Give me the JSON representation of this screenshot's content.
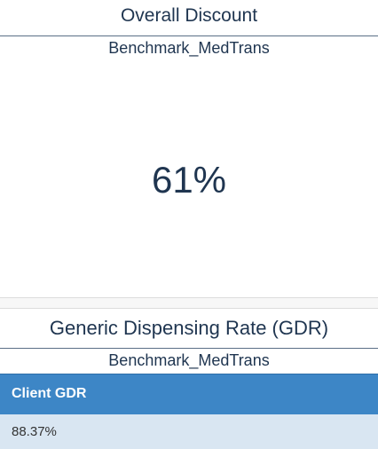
{
  "overall_discount": {
    "title": "Overall Discount",
    "subtitle": "Benchmark_MedTrans",
    "value": "61%"
  },
  "gdr": {
    "title": "Generic Dispensing Rate (GDR)",
    "subtitle": "Benchmark_MedTrans",
    "columns": [
      "Client GDR"
    ],
    "rows": [
      [
        "88.37%"
      ]
    ]
  },
  "colors": {
    "header_blue": "#3d86c6",
    "row_bg": "#d9e6f2",
    "text_navy": "#1f3550"
  }
}
